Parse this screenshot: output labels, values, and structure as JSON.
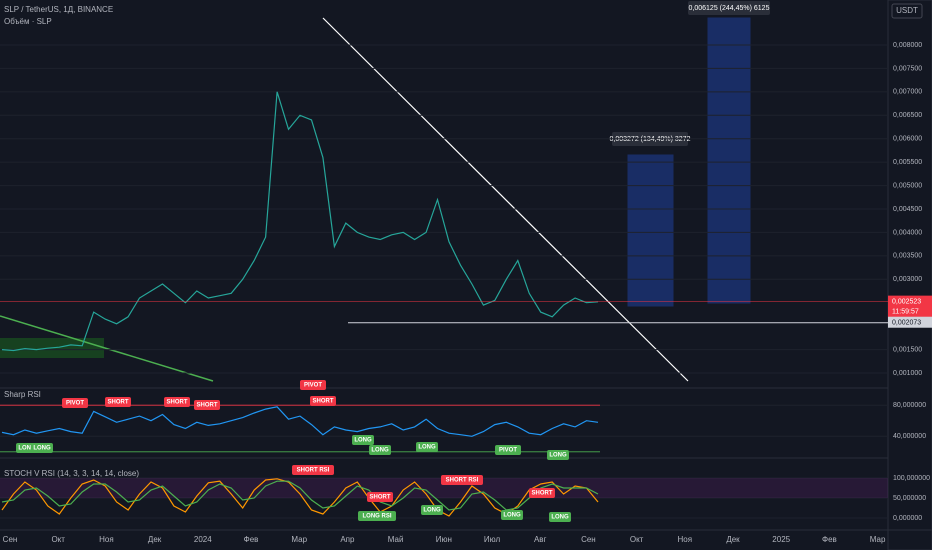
{
  "header": {
    "symbol": "SLP / TetherUS, 1Д, BINANCE",
    "volume": "Объём · SLP",
    "currency": "USDT"
  },
  "months": [
    "Сен",
    "Окт",
    "Ноя",
    "Дек",
    "2024",
    "Фев",
    "Мар",
    "Апр",
    "Май",
    "Июн",
    "Июл",
    "Авг",
    "Сен",
    "Окт",
    "Ноя",
    "Дек",
    "2025",
    "Фев",
    "Мар"
  ],
  "signals": [
    "PIVOT",
    "SHORT",
    "SHORT",
    "SHORT",
    "PIVOT",
    "SHORT",
    "LONG",
    "LONG",
    "LONG",
    "PIVOT",
    "LONG",
    "LONG",
    "LONG",
    "SHORT RSI",
    "SHORT",
    "LONG RSI",
    "LONG",
    "SHORT RSI",
    "SHORT",
    "LONG",
    "LONG"
  ],
  "chart_data": [
    {
      "type": "line",
      "color": "#26a69a",
      "values": [
        0.0015,
        0.00148,
        0.00152,
        0.0015,
        0.00153,
        0.00155,
        0.0016,
        0.00158,
        0.0023,
        0.00215,
        0.00205,
        0.0022,
        0.0026,
        0.00275,
        0.0029,
        0.0027,
        0.0025,
        0.00275,
        0.0026,
        0.00265,
        0.0027,
        0.003,
        0.0034,
        0.0039,
        0.007,
        0.0062,
        0.0065,
        0.0064,
        0.0056,
        0.0037,
        0.0042,
        0.004,
        0.0039,
        0.00385,
        0.00395,
        0.004,
        0.00385,
        0.004,
        0.0047,
        0.0038,
        0.0033,
        0.0029,
        0.00245,
        0.00255,
        0.003,
        0.0034,
        0.0027,
        0.0023,
        0.0022,
        0.00245,
        0.0026,
        0.0025,
        0.00252
      ],
      "ylim": [
        0.00068,
        0.00896
      ],
      "yticks": [
        {
          "value": 0.008,
          "label": "0,008000"
        },
        {
          "value": 0.0075,
          "label": "0,007500"
        },
        {
          "value": 0.007,
          "label": "0,007000"
        },
        {
          "value": 0.0065,
          "label": "0,006500"
        },
        {
          "value": 0.006,
          "label": "0,006000"
        },
        {
          "value": 0.0055,
          "label": "0,005500"
        },
        {
          "value": 0.005,
          "label": "0,005000"
        },
        {
          "value": 0.0045,
          "label": "0,004500"
        },
        {
          "value": 0.004,
          "label": "0,004000"
        },
        {
          "value": 0.0035,
          "label": "0,003500"
        },
        {
          "value": 0.003,
          "label": "0,003000"
        },
        {
          "value": 0.0015,
          "label": "0,001500"
        },
        {
          "value": 0.001,
          "label": "0,001000"
        }
      ],
      "price_lines": [
        {
          "value": 0.002523,
          "label": "0,002523",
          "color": "#f23645"
        },
        {
          "value": 0.002073,
          "label": "0,002073",
          "color": "#d1d4dc"
        }
      ],
      "countdown": "11:59:57",
      "measures": [
        "0,006125 (244,45%) 6125",
        "0,003272 (134,49%) 3272"
      ]
    },
    {
      "type": "line",
      "title": "Sharp RSI",
      "color": "#2196f3",
      "values": [
        45,
        42,
        48,
        44,
        47,
        50,
        46,
        44,
        72,
        65,
        58,
        62,
        66,
        60,
        68,
        55,
        50,
        58,
        54,
        56,
        60,
        64,
        70,
        75,
        78,
        62,
        66,
        55,
        42,
        52,
        48,
        46,
        50,
        52,
        56,
        48,
        52,
        62,
        50,
        44,
        42,
        40,
        46,
        55,
        58,
        52,
        44,
        42,
        50,
        56,
        52,
        60,
        58
      ],
      "ylim": [
        12,
        97
      ],
      "yticks": [
        {
          "value": 80,
          "label": "80,000000"
        },
        {
          "value": 40,
          "label": "40,000000"
        }
      ],
      "levels": [
        80,
        20
      ]
    },
    {
      "type": "line",
      "title": "STOCH V RSI (14, 3, 3, 14, 14, close)",
      "series": [
        {
          "color": "#ff9800",
          "values": [
            20,
            60,
            90,
            70,
            30,
            10,
            50,
            85,
            95,
            80,
            40,
            20,
            60,
            90,
            75,
            30,
            15,
            55,
            88,
            92,
            60,
            25,
            70,
            95,
            98,
            90,
            60,
            20,
            10,
            40,
            75,
            90,
            50,
            15,
            30,
            70,
            90,
            60,
            20,
            5,
            40,
            80,
            60,
            25,
            10,
            30,
            70,
            85,
            90,
            60,
            80,
            75,
            40
          ]
        },
        {
          "color": "#4caf50",
          "values": [
            40,
            45,
            70,
            75,
            55,
            30,
            35,
            65,
            85,
            85,
            65,
            40,
            45,
            70,
            80,
            55,
            30,
            40,
            70,
            85,
            75,
            45,
            50,
            80,
            92,
            92,
            75,
            45,
            25,
            30,
            55,
            80,
            70,
            40,
            30,
            50,
            75,
            70,
            45,
            20,
            25,
            60,
            65,
            45,
            20,
            25,
            50,
            75,
            85,
            75,
            75,
            75,
            60
          ]
        }
      ],
      "ylim": [
        -30,
        140
      ],
      "yticks": [
        {
          "value": 100,
          "label": "100,000000"
        },
        {
          "value": 50,
          "label": "50,000000"
        },
        {
          "value": 0,
          "label": "0,000000"
        }
      ]
    }
  ]
}
